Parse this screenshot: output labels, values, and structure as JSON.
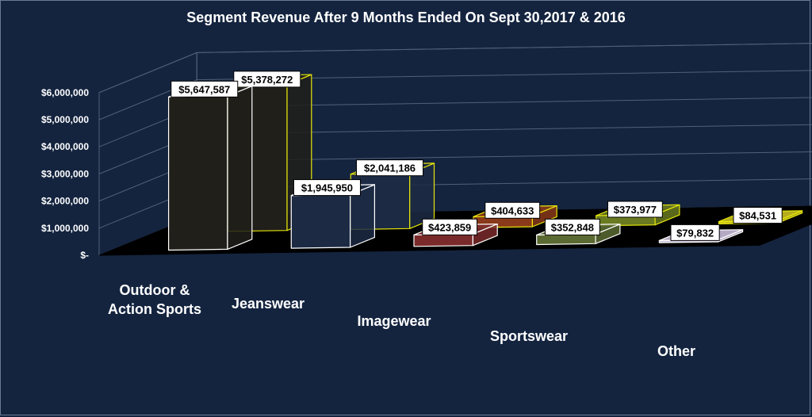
{
  "chart_data": {
    "type": "bar",
    "title": "Segment Revenue After 9 Months Ended On Sept 30,2017 & 2016",
    "categories": [
      [
        "Outdoor &",
        "Action Sports"
      ],
      [
        "Jeanswear"
      ],
      [
        "Imagewear"
      ],
      [
        "Sportswear"
      ],
      [
        "Other"
      ]
    ],
    "series": [
      {
        "values": [
          5647587,
          1945950,
          423859,
          352848,
          79832
        ]
      },
      {
        "values": [
          5378272,
          2041186,
          404633,
          373977,
          84531
        ]
      }
    ],
    "data_labels": [
      [
        "$5,647,587",
        "$1,945,950",
        "$423,859",
        "$352,848",
        "$79,832"
      ],
      [
        "$5,378,272",
        "$2,041,186",
        "$404,633",
        "$373,977",
        "$84,531"
      ]
    ],
    "y_ticks": [
      {
        "value": 0,
        "label": "$-"
      },
      {
        "value": 1000000,
        "label": "$1,000,000"
      },
      {
        "value": 2000000,
        "label": "$2,000,000"
      },
      {
        "value": 3000000,
        "label": "$3,000,000"
      },
      {
        "value": 4000000,
        "label": "$4,000,000"
      },
      {
        "value": 5000000,
        "label": "$5,000,000"
      },
      {
        "value": 6000000,
        "label": "$6,000,000"
      }
    ],
    "ylim": [
      0,
      6000000
    ],
    "grid": true,
    "legend": "none",
    "colors": [
      {
        "fill": "#201f1a",
        "stroke": "#ffffff"
      },
      {
        "fill": "#1c2a44",
        "stroke": "#ffffff"
      },
      {
        "fill": "#7a2a2a",
        "stroke": "#ffffff"
      },
      {
        "fill": "#5a6a32",
        "stroke": "#ffffff"
      },
      {
        "fill": "#c9bdd9",
        "stroke": "#ffffff"
      }
    ],
    "back_colors": [
      {
        "fill": "#201f1a",
        "stroke": "#e6e60a"
      },
      {
        "fill": "#1c2a44",
        "stroke": "#e6e60a"
      },
      {
        "fill": "#8a3a1a",
        "stroke": "#e6e60a"
      },
      {
        "fill": "#6a7a20",
        "stroke": "#e6e60a"
      },
      {
        "fill": "#c9c020",
        "stroke": "#e6e60a"
      }
    ],
    "floor_color": "#000000",
    "grid_color": "#52607a"
  }
}
